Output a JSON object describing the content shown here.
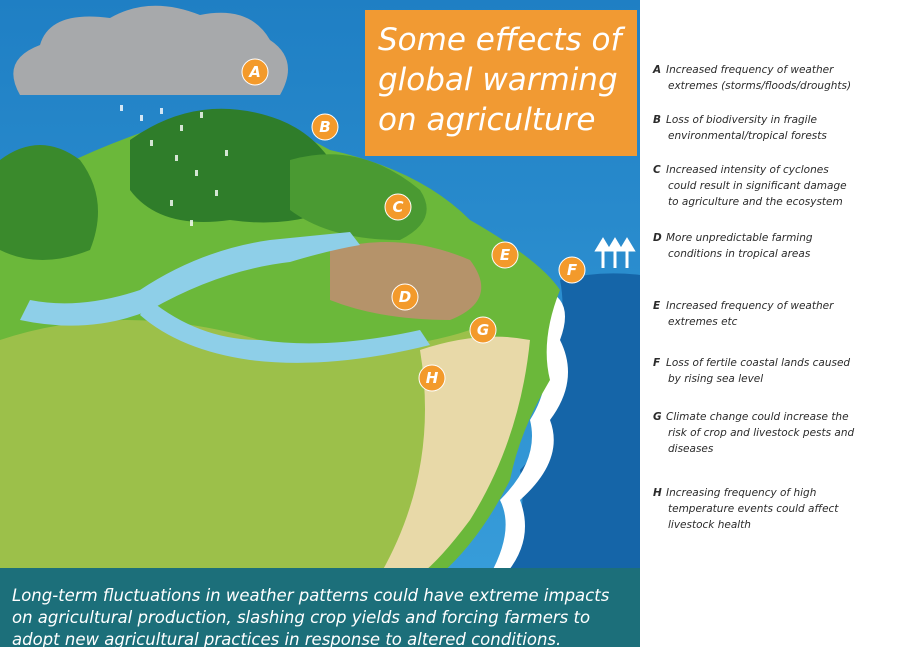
{
  "title": {
    "lines": [
      "Some effects of",
      "global warming",
      "on agriculture"
    ]
  },
  "markers": [
    "A",
    "B",
    "C",
    "D",
    "E",
    "F",
    "G",
    "H"
  ],
  "legend": [
    {
      "letter": "A",
      "lines": [
        "Increased frequency of weather",
        "extremes (storms/floods/droughts)"
      ]
    },
    {
      "letter": "B",
      "lines": [
        "Loss of biodiversity in fragile",
        "environmental/tropical forests"
      ]
    },
    {
      "letter": "C",
      "lines": [
        "Increased intensity of cyclones",
        "could result in significant damage",
        "to agriculture and the ecosystem"
      ]
    },
    {
      "letter": "D",
      "lines": [
        "More unpredictable farming",
        "conditions in tropical areas"
      ]
    },
    {
      "letter": "E",
      "lines": [
        "Increased frequency of weather",
        "extremes etc"
      ]
    },
    {
      "letter": "F",
      "lines": [
        "Loss of fertile coastal lands caused",
        "by rising sea level"
      ]
    },
    {
      "letter": "G",
      "lines": [
        "Climate change could increase the",
        "risk of crop and livestock pests and",
        "diseases"
      ]
    },
    {
      "letter": "H",
      "lines": [
        "Increasing frequency of high",
        "temperature events could affect",
        "livestock health"
      ]
    }
  ],
  "caption": {
    "lines": [
      "Long-term fluctuations in weather patterns could have extreme impacts",
      "on agricultural production, slashing crop yields and forcing farmers to",
      "adopt new agricultural practices in response to altered conditions."
    ]
  }
}
